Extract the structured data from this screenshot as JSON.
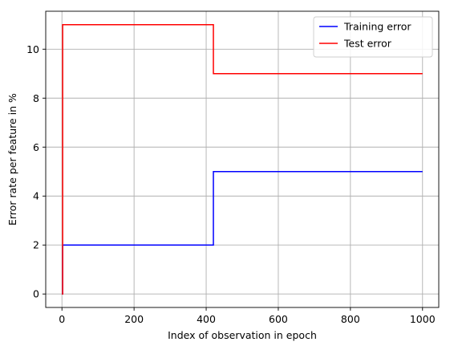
{
  "chart_data": {
    "type": "line",
    "title": "",
    "xlabel": "Index of observation in epoch",
    "ylabel": "Error rate per feature in %",
    "xlim": [
      -45,
      1045
    ],
    "ylim": [
      -0.55,
      11.55
    ],
    "xticks": [
      0,
      200,
      400,
      600,
      800,
      1000
    ],
    "yticks": [
      0,
      2,
      4,
      6,
      8,
      10
    ],
    "grid": true,
    "legend_position": "top-right",
    "series": [
      {
        "name": "Training error",
        "color": "#0000ff",
        "step": true,
        "x": [
          0,
          2,
          420,
          1000
        ],
        "y": [
          0,
          2,
          5,
          5
        ]
      },
      {
        "name": "Test error",
        "color": "#ff0000",
        "step": true,
        "x": [
          0,
          2,
          420,
          1000
        ],
        "y": [
          0,
          11,
          9,
          9
        ]
      }
    ]
  }
}
